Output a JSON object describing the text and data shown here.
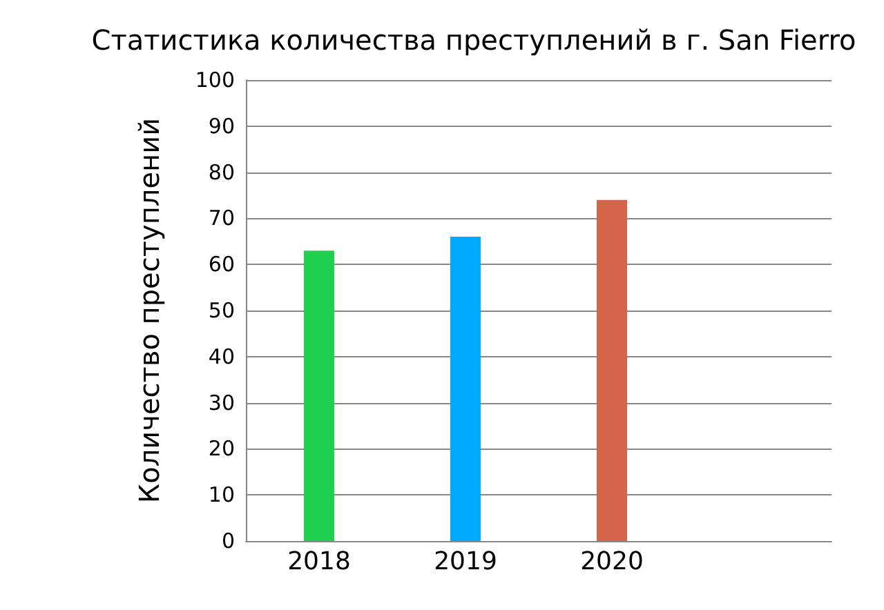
{
  "chart_data": {
    "type": "bar",
    "title": "Статистика количества преступлений в г. San Fierro",
    "ylabel": "Количество преступлений",
    "categories": [
      "2018",
      "2019",
      "2020",
      null
    ],
    "values": [
      63,
      66,
      74,
      null
    ],
    "colors": [
      "#1fd14f",
      "#00aaff",
      "#d4654a",
      "#888888"
    ],
    "ylim": [
      0,
      100
    ],
    "yticks": [
      0,
      10,
      20,
      30,
      40,
      50,
      60,
      70,
      80,
      90,
      100
    ],
    "grid": "y"
  }
}
